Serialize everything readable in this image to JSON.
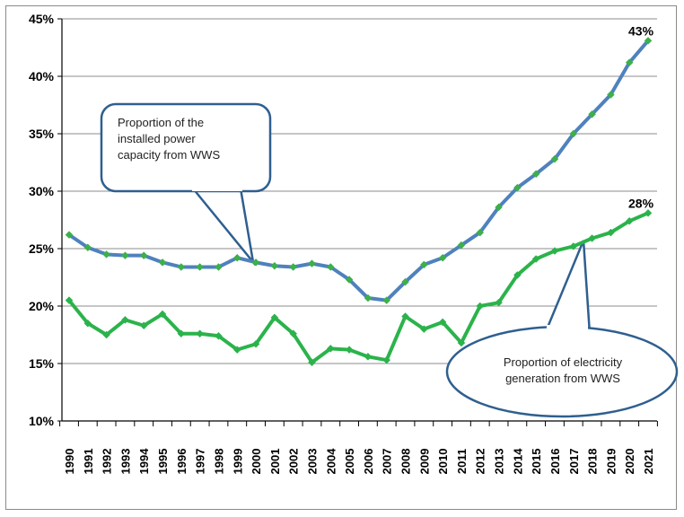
{
  "chart_data": {
    "type": "line",
    "title": "",
    "xlabel": "",
    "ylabel": "",
    "ylim": [
      0.1,
      0.45
    ],
    "yticks": [
      "10%",
      "15%",
      "20%",
      "25%",
      "30%",
      "35%",
      "40%",
      "45%"
    ],
    "yticks_values": [
      0.1,
      0.15,
      0.2,
      0.25,
      0.3,
      0.35,
      0.4,
      0.45
    ],
    "grid": true,
    "x": [
      "1990",
      "1991",
      "1992",
      "1993",
      "1994",
      "1995",
      "1996",
      "1997",
      "1998",
      "1999",
      "2000",
      "2001",
      "2002",
      "2003",
      "2004",
      "2005",
      "2006",
      "2007",
      "2008",
      "2009",
      "2010",
      "2011",
      "2012",
      "2013",
      "2014",
      "2015",
      "2016",
      "2017",
      "2018",
      "2019",
      "2020",
      "2021"
    ],
    "series": [
      {
        "name": "Proportion of the installed power capacity from WWS",
        "color": "#4f81bd",
        "marker_color": "#3cb04a",
        "values": [
          0.262,
          0.251,
          0.245,
          0.244,
          0.244,
          0.238,
          0.234,
          0.234,
          0.234,
          0.242,
          0.238,
          0.235,
          0.234,
          0.237,
          0.234,
          0.223,
          0.207,
          0.205,
          0.221,
          0.236,
          0.242,
          0.253,
          0.264,
          0.286,
          0.303,
          0.315,
          0.328,
          0.35,
          0.367,
          0.384,
          0.412,
          0.431
        ],
        "end_label": "43%"
      },
      {
        "name": "Proportion of electricity generation from WWS",
        "color": "#2bb34b",
        "marker_color": "#2bb34b",
        "values": [
          0.205,
          0.185,
          0.175,
          0.188,
          0.183,
          0.193,
          0.176,
          0.176,
          0.174,
          0.162,
          0.167,
          0.19,
          0.176,
          0.151,
          0.163,
          0.162,
          0.156,
          0.153,
          0.191,
          0.18,
          0.186,
          0.168,
          0.2,
          0.203,
          0.227,
          0.241,
          0.248,
          0.252,
          0.259,
          0.264,
          0.274,
          0.281
        ],
        "end_label": "28%"
      }
    ],
    "annotations": [
      {
        "text_lines": [
          "Proportion of the",
          "installed power",
          "capacity from WWS"
        ],
        "points_to_year": "2000",
        "series": 0
      },
      {
        "text_lines": [
          "Proportion of electricity",
          "generation from WWS"
        ],
        "points_to_year": "2017",
        "series": 1
      }
    ]
  },
  "colors": {
    "grid": "#8c8c8c",
    "axis": "#000000",
    "callout_stroke": "#2f5f8f"
  }
}
